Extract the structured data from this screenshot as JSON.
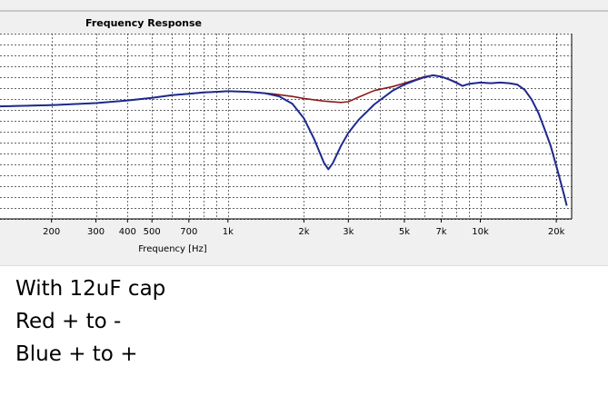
{
  "chart_data": {
    "type": "line",
    "title": "Frequency Response",
    "xlabel": "Frequency [Hz]",
    "ylabel": "",
    "x_scale": "log",
    "xlim": [
      125,
      23000
    ],
    "ylim": [
      -22,
      6
    ],
    "grid": true,
    "x_tick_labels": [
      "200",
      "300",
      "400",
      "500",
      "700",
      "1k",
      "2k",
      "3k",
      "5k",
      "7k",
      "10k",
      "20k"
    ],
    "x_tick_values": [
      200,
      300,
      400,
      500,
      700,
      1000,
      2000,
      3000,
      5000,
      7000,
      10000,
      20000
    ],
    "series": [
      {
        "color": "#8b1a1a",
        "x": [
          125,
          200,
          300,
          400,
          500,
          600,
          700,
          800,
          900,
          1000,
          1200,
          1500,
          1800,
          2000,
          2400,
          2800,
          3000,
          3300,
          3800,
          4500,
          5000,
          5500,
          6000,
          6500,
          7000,
          7500,
          8000,
          8500,
          9000,
          10000,
          11000,
          12000,
          13000,
          14000,
          15000,
          16000,
          17000,
          18000,
          19000,
          20000,
          20500,
          21000,
          21500,
          22000
        ],
        "y": [
          -5.0,
          -4.8,
          -4.5,
          -4.1,
          -3.7,
          -3.3,
          -3.1,
          -2.9,
          -2.8,
          -2.7,
          -2.8,
          -3.1,
          -3.5,
          -3.8,
          -4.2,
          -4.4,
          -4.3,
          -3.6,
          -2.6,
          -2.0,
          -1.5,
          -1.0,
          -0.5,
          -0.3,
          -0.5,
          -0.9,
          -1.3,
          -1.9,
          -1.6,
          -1.4,
          -1.5,
          -1.4,
          -1.5,
          -1.7,
          -2.5,
          -4.0,
          -6.0,
          -8.5,
          -11.0,
          -14.0,
          -15.5,
          -17.0,
          -18.5,
          -20.0
        ]
      },
      {
        "color": "#1e2b8f",
        "x": [
          125,
          200,
          300,
          400,
          500,
          600,
          700,
          800,
          900,
          1000,
          1200,
          1400,
          1600,
          1800,
          2000,
          2200,
          2400,
          2500,
          2600,
          2800,
          3000,
          3300,
          3800,
          4500,
          5000,
          5500,
          6000,
          6500,
          7000,
          7500,
          8000,
          8500,
          9000,
          10000,
          11000,
          12000,
          13000,
          14000,
          15000,
          16000,
          17000,
          18000,
          19000,
          20000,
          20500,
          21000,
          21500,
          22000
        ],
        "y": [
          -5.0,
          -4.8,
          -4.5,
          -4.1,
          -3.7,
          -3.3,
          -3.1,
          -2.9,
          -2.8,
          -2.7,
          -2.8,
          -3.0,
          -3.5,
          -4.6,
          -6.8,
          -10.0,
          -13.5,
          -14.5,
          -13.6,
          -11.0,
          -9.0,
          -7.0,
          -4.7,
          -2.6,
          -1.7,
          -1.1,
          -0.6,
          -0.3,
          -0.5,
          -0.9,
          -1.4,
          -1.9,
          -1.6,
          -1.4,
          -1.5,
          -1.4,
          -1.5,
          -1.7,
          -2.5,
          -4.0,
          -6.0,
          -8.5,
          -11.0,
          -14.0,
          -15.5,
          -17.0,
          -18.5,
          -20.0
        ]
      }
    ]
  },
  "caption": {
    "lines": [
      "With 12uF cap",
      "Red + to -",
      "Blue + to +"
    ]
  }
}
